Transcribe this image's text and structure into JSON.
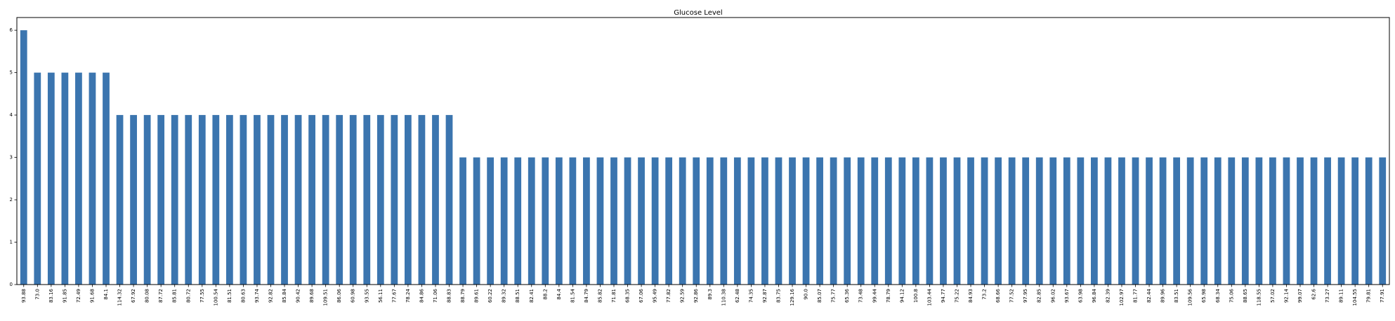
{
  "chart_data": {
    "type": "bar",
    "title": "Glucose Level",
    "xlabel": "",
    "ylabel": "",
    "ylim": [
      0,
      6.3
    ],
    "yticks": [
      0,
      1,
      2,
      3,
      4,
      5,
      6
    ],
    "grid": false,
    "legend": "none",
    "bar_color": "#3b75af",
    "categories": [
      "93.88",
      "73.0",
      "83.16",
      "91.85",
      "72.49",
      "91.68",
      "84.1",
      "114.32",
      "67.92",
      "80.08",
      "87.72",
      "85.81",
      "80.72",
      "77.55",
      "100.54",
      "81.51",
      "80.63",
      "93.74",
      "92.82",
      "85.84",
      "90.42",
      "89.68",
      "109.51",
      "86.06",
      "60.98",
      "93.55",
      "56.11",
      "77.67",
      "78.24",
      "84.86",
      "71.06",
      "88.83",
      "88.79",
      "89.61",
      "60.22",
      "89.32",
      "88.51",
      "82.41",
      "88.2",
      "84.4",
      "81.54",
      "84.79",
      "85.82",
      "71.81",
      "68.35",
      "67.06",
      "95.49",
      "77.82",
      "92.59",
      "92.86",
      "89.3",
      "110.38",
      "62.48",
      "74.35",
      "92.87",
      "83.75",
      "129.16",
      "90.0",
      "85.07",
      "75.77",
      "65.36",
      "73.48",
      "99.44",
      "78.79",
      "94.12",
      "100.8",
      "103.44",
      "94.77",
      "75.22",
      "84.93",
      "73.2",
      "68.66",
      "77.52",
      "97.95",
      "82.85",
      "96.02",
      "93.67",
      "63.98",
      "96.84",
      "82.39",
      "102.97",
      "81.77",
      "82.44",
      "89.96",
      "83.51",
      "109.56",
      "65.98",
      "68.34",
      "75.06",
      "88.65",
      "118.55",
      "57.02",
      "92.14",
      "99.07",
      "62.6",
      "73.27",
      "89.11",
      "104.55",
      "79.81",
      "77.91"
    ],
    "values": [
      6,
      5,
      5,
      5,
      5,
      5,
      5,
      4,
      4,
      4,
      4,
      4,
      4,
      4,
      4,
      4,
      4,
      4,
      4,
      4,
      4,
      4,
      4,
      4,
      4,
      4,
      4,
      4,
      4,
      4,
      4,
      4,
      3,
      3,
      3,
      3,
      3,
      3,
      3,
      3,
      3,
      3,
      3,
      3,
      3,
      3,
      3,
      3,
      3,
      3,
      3,
      3,
      3,
      3,
      3,
      3,
      3,
      3,
      3,
      3,
      3,
      3,
      3,
      3,
      3,
      3,
      3,
      3,
      3,
      3,
      3,
      3,
      3,
      3,
      3,
      3,
      3,
      3,
      3,
      3,
      3,
      3,
      3,
      3,
      3,
      3,
      3,
      3,
      3,
      3,
      3,
      3,
      3,
      3,
      3,
      3,
      3,
      3,
      3,
      3
    ]
  }
}
